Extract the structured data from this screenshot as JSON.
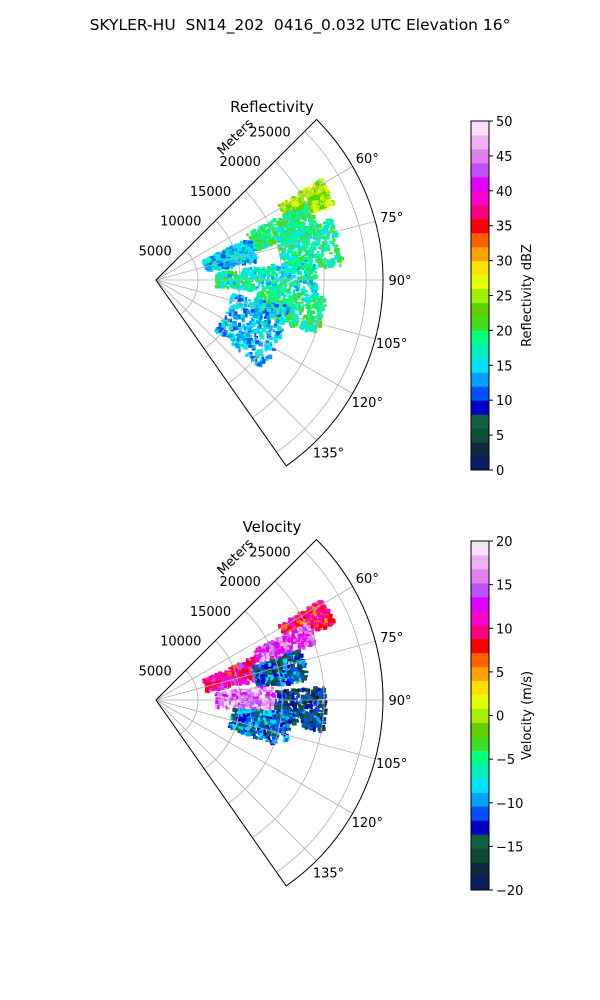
{
  "figure_title": "SKYLER-HU  SN14_202  0416_0.032 UTC Elevation 16°",
  "chart_data": [
    {
      "type": "heatmap",
      "subtype": "polar-sector (radar PPI)",
      "title": "Reflectivity",
      "range_label": "Meters",
      "range_ticks": [
        5000,
        10000,
        15000,
        20000,
        25000
      ],
      "range_max_m": 27000,
      "azimuth_range_deg": [
        45,
        145
      ],
      "azimuth_ticks": [
        "60°",
        "75°",
        "90°",
        "105°",
        "120°",
        "135°"
      ],
      "azimuth_tick_values": [
        60,
        75,
        90,
        105,
        120,
        135
      ],
      "colorbar": {
        "label": "Reflectivity dBZ",
        "min": 0,
        "max": 50,
        "ticks": [
          "0",
          "5",
          "10",
          "15",
          "20",
          "25",
          "30",
          "35",
          "40",
          "45",
          "50"
        ],
        "colormap": [
          "#0c1a5e",
          "#0d2a3c",
          "#0e4d35",
          "#0f6040",
          "#0000c8",
          "#0050ff",
          "#00a0ff",
          "#00e0ff",
          "#00f0c0",
          "#00ff80",
          "#40e020",
          "#60d000",
          "#a0f000",
          "#e0ff00",
          "#ffe000",
          "#ffa000",
          "#ff6000",
          "#ff0000",
          "#ff0080",
          "#ff00d0",
          "#e000ff",
          "#c050ff",
          "#e080f0",
          "#f0b0f0",
          "#fce0fc"
        ]
      },
      "echo_regions": [
        {
          "az": [
            58,
            66
          ],
          "r": [
            17000,
            23000
          ],
          "value": 25
        },
        {
          "az": [
            62,
            72
          ],
          "r": [
            12000,
            20000
          ],
          "value": 19
        },
        {
          "az": [
            65,
            78
          ],
          "r": [
            6000,
            12000
          ],
          "value": 15
        },
        {
          "az": [
            70,
            85
          ],
          "r": [
            15000,
            22000
          ],
          "value": 18
        },
        {
          "az": [
            82,
            95
          ],
          "r": [
            7000,
            19000
          ],
          "value": 17
        },
        {
          "az": [
            95,
            108
          ],
          "r": [
            12000,
            20000
          ],
          "value": 19
        },
        {
          "az": [
            100,
            130
          ],
          "r": [
            9000,
            16000
          ],
          "value": 14
        }
      ]
    },
    {
      "type": "heatmap",
      "subtype": "polar-sector (radar PPI)",
      "title": "Velocity",
      "range_label": "Meters",
      "range_ticks": [
        5000,
        10000,
        15000,
        20000,
        25000
      ],
      "range_max_m": 27000,
      "azimuth_range_deg": [
        45,
        145
      ],
      "azimuth_ticks": [
        "60°",
        "75°",
        "90°",
        "105°",
        "120°",
        "135°"
      ],
      "azimuth_tick_values": [
        60,
        75,
        90,
        105,
        120,
        135
      ],
      "colorbar": {
        "label": "Velocity (m/s)",
        "min": -20,
        "max": 20,
        "ticks": [
          "−20",
          "−15",
          "−10",
          "−5",
          "0",
          "5",
          "10",
          "15",
          "20"
        ],
        "colormap": [
          "#0c1a5e",
          "#0d2a3c",
          "#0e4d35",
          "#0f6040",
          "#0000c8",
          "#0050ff",
          "#00a0ff",
          "#00e0ff",
          "#00f0c0",
          "#00ff80",
          "#40e020",
          "#60d000",
          "#a0f000",
          "#e0ff00",
          "#ffe000",
          "#ffa000",
          "#ff6000",
          "#ff0000",
          "#ff0080",
          "#ff00d0",
          "#e000ff",
          "#c050ff",
          "#e080f0",
          "#f0b0f0",
          "#fce0fc"
        ]
      },
      "echo_regions": [
        {
          "az": [
            58,
            66
          ],
          "r": [
            17000,
            23000
          ],
          "value": 9
        },
        {
          "az": [
            62,
            70
          ],
          "r": [
            13000,
            20000
          ],
          "value": 15
        },
        {
          "az": [
            65,
            78
          ],
          "r": [
            6000,
            13000
          ],
          "value": 11
        },
        {
          "az": [
            70,
            82
          ],
          "r": [
            12000,
            18000
          ],
          "value": -12
        },
        {
          "az": [
            82,
            95
          ],
          "r": [
            7000,
            14000
          ],
          "value": 16
        },
        {
          "az": [
            85,
            100
          ],
          "r": [
            14000,
            20000
          ],
          "value": -14
        },
        {
          "az": [
            95,
            110
          ],
          "r": [
            9000,
            16000
          ],
          "value": -11
        }
      ]
    }
  ]
}
